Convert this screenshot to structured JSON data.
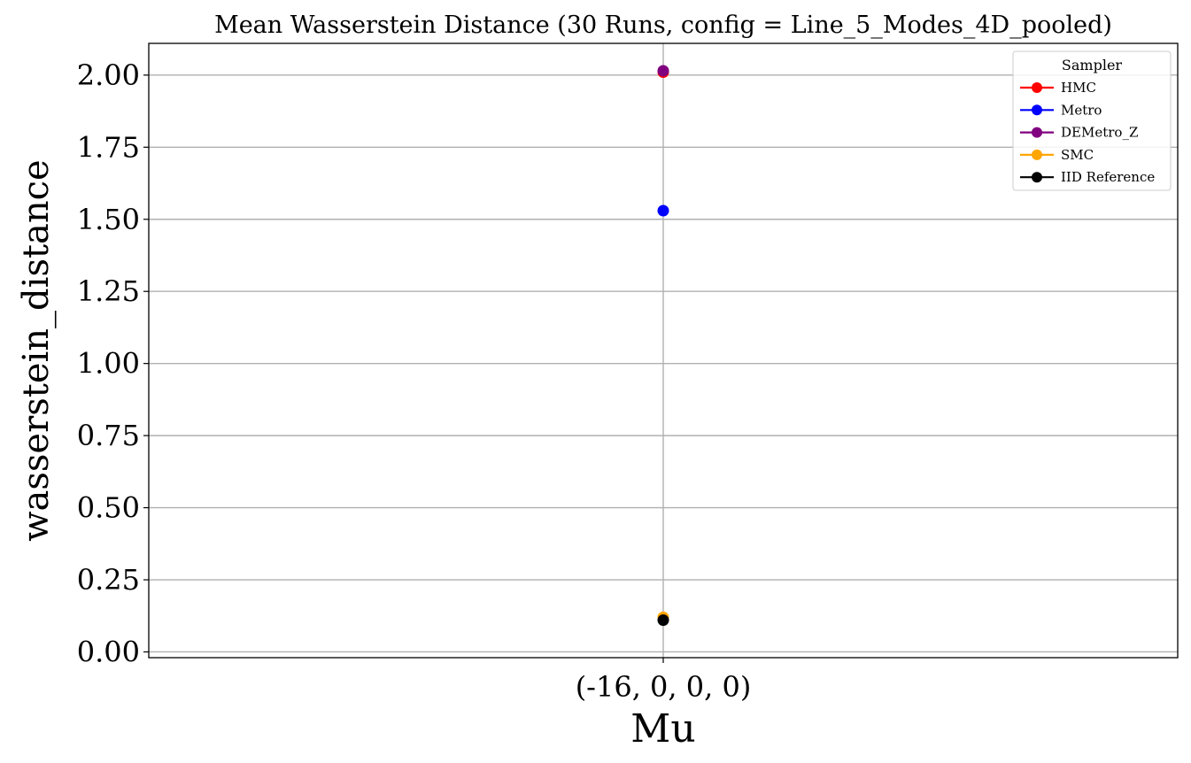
{
  "chart_data": {
    "type": "scatter",
    "title": "Mean Wasserstein Distance (30 Runs, config = Line_5_Modes_4D_pooled)",
    "xlabel": "Mu",
    "ylabel": "wasserstein_distance",
    "categories": [
      "(-16, 0, 0, 0)"
    ],
    "ylim": [
      -0.02,
      2.11
    ],
    "yticks": [
      "0.00",
      "0.25",
      "0.50",
      "0.75",
      "1.00",
      "1.25",
      "1.50",
      "1.75",
      "2.00"
    ],
    "grid": true,
    "legend": {
      "title": "Sampler",
      "placement": "top-right"
    },
    "series": [
      {
        "name": "HMC",
        "color": "#ff0000",
        "values": [
          2.01
        ]
      },
      {
        "name": "Metro",
        "color": "#0000ff",
        "values": [
          1.53
        ]
      },
      {
        "name": "DEMetro_Z",
        "color": "#800080",
        "values": [
          2.015
        ]
      },
      {
        "name": "SMC",
        "color": "#ffa500",
        "values": [
          0.12
        ]
      },
      {
        "name": "IID Reference",
        "color": "#000000",
        "values": [
          0.11
        ]
      }
    ]
  }
}
